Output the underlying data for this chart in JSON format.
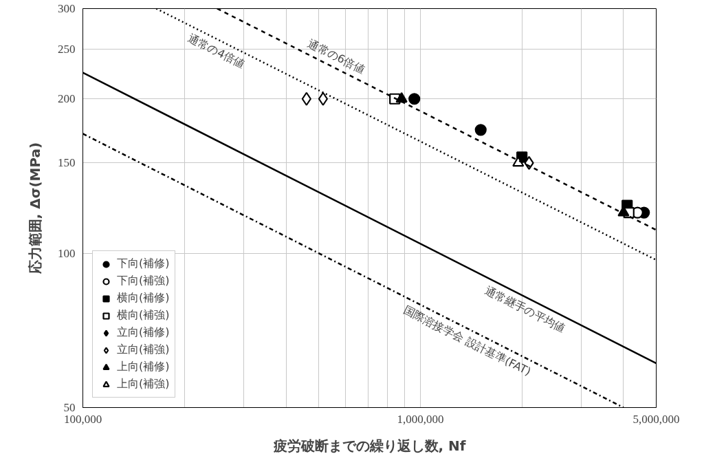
{
  "chart_data": {
    "type": "scatter",
    "xlabel": "疲労破断までの繰り返し数, Nf",
    "ylabel": "応力範囲, Δσ(MPa)",
    "log": "xy",
    "grid": true,
    "legend": "bottom left",
    "xlim": [
      100000,
      5000000
    ],
    "xticks": [
      {
        "value": 100000,
        "label": "100,000"
      },
      {
        "value": 200000,
        "label": null
      },
      {
        "value": 300000,
        "label": null
      },
      {
        "value": 400000,
        "label": null
      },
      {
        "value": 500000,
        "label": null
      },
      {
        "value": 600000,
        "label": null
      },
      {
        "value": 700000,
        "label": null
      },
      {
        "value": 800000,
        "label": null
      },
      {
        "value": 900000,
        "label": null
      },
      {
        "value": 1000000,
        "label": "1,000,000"
      },
      {
        "value": 2000000,
        "label": null
      },
      {
        "value": 3000000,
        "label": null
      },
      {
        "value": 4000000,
        "label": null
      },
      {
        "value": 5000000,
        "label": "5,000,000"
      }
    ],
    "ylim": [
      50,
      300
    ],
    "yticks": [
      50,
      100,
      150,
      200,
      250,
      300
    ],
    "series": [
      {
        "name": "下向(補修)",
        "marker": "circle",
        "color": "#000000",
        "x": [
          960000,
          1510000,
          4600000
        ],
        "values": [
          200,
          174,
          120
        ]
      },
      {
        "name": "下向(補強)",
        "marker": "circle",
        "color": "#ffffff",
        "x": [
          4400000
        ],
        "values": [
          120
        ]
      },
      {
        "name": "横向(補修)",
        "marker": "square",
        "color": "#000000",
        "x": [
          2000000,
          4100000
        ],
        "values": [
          154,
          124
        ]
      },
      {
        "name": "横向(補強)",
        "marker": "square",
        "color": "#ffffff",
        "x": [
          840000,
          4150000
        ],
        "values": [
          200,
          120
        ]
      },
      {
        "name": "立向(補修)",
        "marker": "diamond",
        "color": "#000000"
      },
      {
        "name": "立向(補強)",
        "marker": "diamond",
        "color": "#ffffff",
        "x": [
          460000,
          515000,
          2100000
        ],
        "values": [
          200,
          200,
          150
        ]
      },
      {
        "name": "上向(補修)",
        "marker": "triangle",
        "color": "#000000",
        "x": [
          880000,
          4000000
        ],
        "values": [
          200,
          120
        ]
      },
      {
        "name": "上向(補強)",
        "marker": "triangle",
        "color": "#ffffff",
        "x": [
          1950000
        ],
        "values": [
          150
        ]
      },
      {
        "type": "line",
        "line_style": "dashed",
        "color": "#000000",
        "x": [
          250000,
          5000000
        ],
        "values": [
          300,
          111
        ]
      },
      {
        "type": "line",
        "line_style": "dotted",
        "color": "#000000",
        "x": [
          165000,
          5000000
        ],
        "values": [
          300,
          97
        ]
      },
      {
        "type": "line",
        "line_style": "solid",
        "color": "#000000",
        "x": [
          100000,
          5000000
        ],
        "values": [
          225,
          61
        ]
      },
      {
        "type": "line",
        "line_style": "dashdot",
        "color": "#000000",
        "x": [
          100000,
          4000000
        ],
        "values": [
          171,
          50
        ]
      }
    ],
    "annotations": [
      "通常の6倍値",
      "通常の4倍値",
      "通常継手の平均値",
      "国際溶接学会 設計基準(FAT)"
    ]
  }
}
